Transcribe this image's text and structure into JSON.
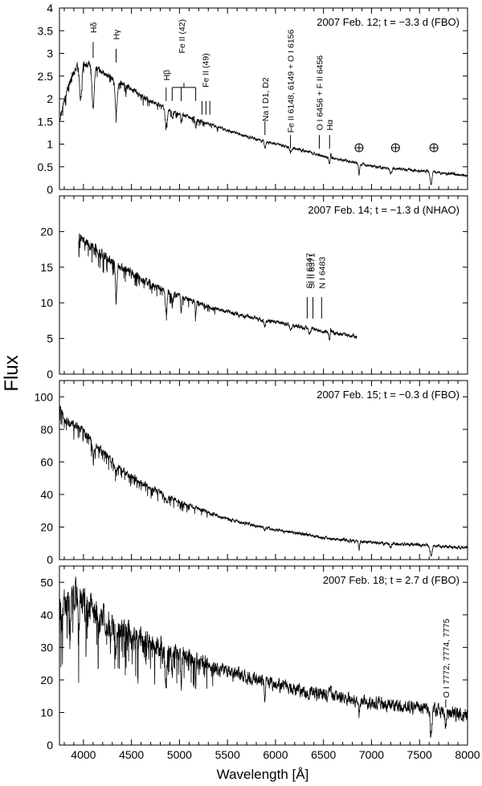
{
  "chart_data": {
    "type": "line",
    "ylabel": "Flux",
    "xlabel": "Wavelength [Å]",
    "xlim": [
      3750,
      8000
    ],
    "xticks": [
      4000,
      4500,
      5000,
      5500,
      6000,
      6500,
      7000,
      7500,
      8000
    ],
    "panels": [
      {
        "title": "2007 Feb. 12; t = −3.3 d (FBO)",
        "ylim": [
          0,
          4
        ],
        "yticks": [
          "0",
          "0.5",
          "1",
          "1.5",
          "2",
          "2.5",
          "3",
          "3.5",
          "4"
        ],
        "continuum": [
          [
            3750,
            1.55
          ],
          [
            3850,
            2.35
          ],
          [
            3950,
            2.8
          ],
          [
            4050,
            2.75
          ],
          [
            4150,
            2.65
          ],
          [
            4300,
            2.45
          ],
          [
            4500,
            2.2
          ],
          [
            4700,
            1.95
          ],
          [
            4900,
            1.75
          ],
          [
            5100,
            1.6
          ],
          [
            5300,
            1.45
          ],
          [
            5500,
            1.3
          ],
          [
            5700,
            1.17
          ],
          [
            5900,
            1.05
          ],
          [
            6100,
            0.95
          ],
          [
            6300,
            0.85
          ],
          [
            6500,
            0.73
          ],
          [
            6700,
            0.65
          ],
          [
            6900,
            0.55
          ],
          [
            7100,
            0.48
          ],
          [
            7300,
            0.45
          ],
          [
            7500,
            0.41
          ],
          [
            7700,
            0.37
          ],
          [
            7900,
            0.33
          ],
          [
            8000,
            0.31
          ]
        ],
        "absorption": [
          [
            3970,
            0.8,
            18
          ],
          [
            4101,
            0.9,
            15
          ],
          [
            4340,
            0.7,
            15
          ],
          [
            4861,
            0.4,
            15
          ],
          [
            4924,
            0.15,
            8
          ],
          [
            5018,
            0.2,
            8
          ],
          [
            5169,
            0.2,
            8
          ],
          [
            5890,
            0.15,
            10
          ],
          [
            6156,
            0.08,
            12
          ],
          [
            6563,
            0.12,
            12
          ],
          [
            6870,
            0.25,
            8
          ],
          [
            7200,
            0.12,
            15
          ],
          [
            7620,
            0.3,
            12
          ]
        ],
        "emission": [
          [
            6575,
            0.15,
            6
          ]
        ],
        "noise": 0.05,
        "labels": [
          {
            "text": "Hδ",
            "x": 4101,
            "y": 3.45
          },
          {
            "text": "Hγ",
            "x": 4340,
            "y": 3.3
          },
          {
            "text": "Hβ",
            "x": 4861,
            "y": 2.4
          },
          {
            "text": "Fe II (42)",
            "x": 5020,
            "y": 3.0
          },
          {
            "text": "Fe II (49)",
            "x": 5270,
            "y": 2.25
          },
          {
            "text": "Na I D1, D2",
            "x": 5890,
            "y": 1.5
          },
          {
            "text": "Fe II 6148, 6149 + O I 6156",
            "x": 6156,
            "y": 1.25
          },
          {
            "text": "O I 6456 + F II 6456",
            "x": 6456,
            "y": 1.3
          },
          {
            "text": "Hα",
            "x": 6563,
            "y": 1.3
          }
        ],
        "markers": [
          {
            "x": 4101,
            "y1": 2.9,
            "y2": 3.25
          },
          {
            "x": 4340,
            "y1": 2.8,
            "y2": 3.1
          },
          {
            "x": 4861,
            "y1": 1.95,
            "y2": 2.25
          },
          {
            "x": 4924,
            "y1": 1.95,
            "y2": 2.25
          },
          {
            "x": 5018,
            "y1": 1.95,
            "y2": 2.25
          },
          {
            "x": 5169,
            "y1": 1.95,
            "y2": 2.25
          },
          {
            "x": 5235,
            "y1": 1.65,
            "y2": 1.95
          },
          {
            "x": 5276,
            "y1": 1.65,
            "y2": 1.95
          },
          {
            "x": 5316,
            "y1": 1.65,
            "y2": 1.95
          },
          {
            "x": 5890,
            "y1": 1.2,
            "y2": 1.5
          },
          {
            "x": 6156,
            "y1": 0.9,
            "y2": 1.2
          },
          {
            "x": 6456,
            "y1": 0.9,
            "y2": 1.2
          },
          {
            "x": 6563,
            "y1": 0.9,
            "y2": 1.2
          }
        ],
        "bracket": {
          "x1": 4924,
          "x2": 5169,
          "y": 2.25,
          "up": 2.35
        },
        "telluric": [
          6870,
          7250,
          7650
        ],
        "telluric_y": 0.92
      },
      {
        "title": "2007 Feb. 14; t = −1.3 d (NHAO)",
        "ylim": [
          0,
          25
        ],
        "yticks": [
          "0",
          "5",
          "10",
          "15",
          "20"
        ],
        "xrange": [
          3950,
          6850
        ],
        "continuum": [
          [
            3950,
            19.2
          ],
          [
            4050,
            18.3
          ],
          [
            4150,
            17.3
          ],
          [
            4300,
            15.8
          ],
          [
            4500,
            14.2
          ],
          [
            4700,
            12.7
          ],
          [
            4900,
            11.4
          ],
          [
            5100,
            10.4
          ],
          [
            5300,
            9.5
          ],
          [
            5500,
            8.7
          ],
          [
            5700,
            8.1
          ],
          [
            5900,
            7.5
          ],
          [
            6100,
            7.0
          ],
          [
            6300,
            6.5
          ],
          [
            6500,
            6.0
          ],
          [
            6700,
            5.6
          ],
          [
            6850,
            5.2
          ]
        ],
        "absorption": [
          [
            4340,
            5.5,
            10
          ],
          [
            4861,
            3.0,
            12
          ],
          [
            4924,
            1.5,
            8
          ],
          [
            5018,
            2.0,
            8
          ],
          [
            5169,
            2.0,
            8
          ],
          [
            5890,
            1.0,
            10
          ],
          [
            6156,
            0.5,
            12
          ],
          [
            6355,
            0.8,
            15
          ],
          [
            6563,
            1.0,
            12
          ]
        ],
        "emission": [
          [
            6575,
            1.2,
            6
          ]
        ],
        "noise": 0.45,
        "labels": [
          {
            "text": "Si II 6347",
            "x": 6347,
            "y": 12.0
          },
          {
            "text": "Si II 6371",
            "x": 6371,
            "y": 12.0
          },
          {
            "text": "N I 6483",
            "x": 6483,
            "y": 12.0
          }
        ],
        "markers": [
          {
            "x": 6330,
            "y1": 7.8,
            "y2": 10.8
          },
          {
            "x": 6390,
            "y1": 7.8,
            "y2": 10.8
          },
          {
            "x": 6480,
            "y1": 7.8,
            "y2": 10.8
          }
        ]
      },
      {
        "title": "2007 Feb. 15; t = −0.3 d (FBO)",
        "ylim": [
          0,
          110
        ],
        "yticks": [
          "0",
          "20",
          "40",
          "60",
          "80",
          "100"
        ],
        "continuum": [
          [
            3750,
            95
          ],
          [
            3800,
            86
          ],
          [
            3900,
            83
          ],
          [
            4000,
            79
          ],
          [
            4100,
            72
          ],
          [
            4300,
            60
          ],
          [
            4500,
            51
          ],
          [
            4700,
            44
          ],
          [
            4900,
            38
          ],
          [
            5100,
            33
          ],
          [
            5300,
            29
          ],
          [
            5500,
            25
          ],
          [
            5700,
            22
          ],
          [
            5900,
            19.5
          ],
          [
            6100,
            17.5
          ],
          [
            6300,
            15.5
          ],
          [
            6500,
            13.5
          ],
          [
            6700,
            12
          ],
          [
            6900,
            11
          ],
          [
            7100,
            10
          ],
          [
            7300,
            9.5
          ],
          [
            7500,
            9
          ],
          [
            7700,
            8.2
          ],
          [
            7900,
            7.6
          ],
          [
            8000,
            7.4
          ]
        ],
        "absorption": [
          [
            4101,
            8,
            15
          ],
          [
            4340,
            5,
            15
          ],
          [
            4861,
            3,
            15
          ],
          [
            5890,
            2,
            12
          ],
          [
            6870,
            5,
            8
          ],
          [
            7200,
            2,
            15
          ],
          [
            7620,
            6,
            15
          ]
        ],
        "emission": [],
        "noise": 1.6
      },
      {
        "title": "2007 Feb. 18; t = 2.7 d (FBO)",
        "ylim": [
          0,
          55
        ],
        "yticks": [
          "0",
          "10",
          "20",
          "30",
          "40",
          "50"
        ],
        "continuum": [
          [
            3750,
            40
          ],
          [
            3850,
            43
          ],
          [
            3950,
            46
          ],
          [
            4050,
            42
          ],
          [
            4150,
            40
          ],
          [
            4300,
            37
          ],
          [
            4500,
            34
          ],
          [
            4700,
            31
          ],
          [
            4900,
            28.5
          ],
          [
            5100,
            26.5
          ],
          [
            5300,
            24.5
          ],
          [
            5500,
            22.5
          ],
          [
            5700,
            21
          ],
          [
            5900,
            19.5
          ],
          [
            6100,
            18
          ],
          [
            6300,
            16.5
          ],
          [
            6500,
            15.5
          ],
          [
            6700,
            14.5
          ],
          [
            6900,
            13.5
          ],
          [
            7100,
            12.5
          ],
          [
            7300,
            12
          ],
          [
            7500,
            11.3
          ],
          [
            7700,
            10.5
          ],
          [
            7900,
            9.5
          ],
          [
            8000,
            9.2
          ]
        ],
        "absorption": [
          [
            3860,
            8,
            10
          ],
          [
            3950,
            12,
            8
          ],
          [
            4340,
            8,
            12
          ],
          [
            4861,
            10,
            12
          ],
          [
            4924,
            8,
            6
          ],
          [
            5018,
            9,
            6
          ],
          [
            5169,
            8,
            6
          ],
          [
            5890,
            5,
            8
          ],
          [
            6870,
            4,
            8
          ],
          [
            7620,
            8,
            12
          ],
          [
            7773,
            4,
            10
          ]
        ],
        "emission": [
          [
            6575,
            4,
            7
          ]
        ],
        "noise": 3.2,
        "labels": [
          {
            "text": "O I 7772, 7774, 7775",
            "x": 7773,
            "y": 14.5
          }
        ],
        "markers": [
          {
            "x": 7773,
            "y1": 11.5,
            "y2": 14
          }
        ]
      }
    ]
  }
}
